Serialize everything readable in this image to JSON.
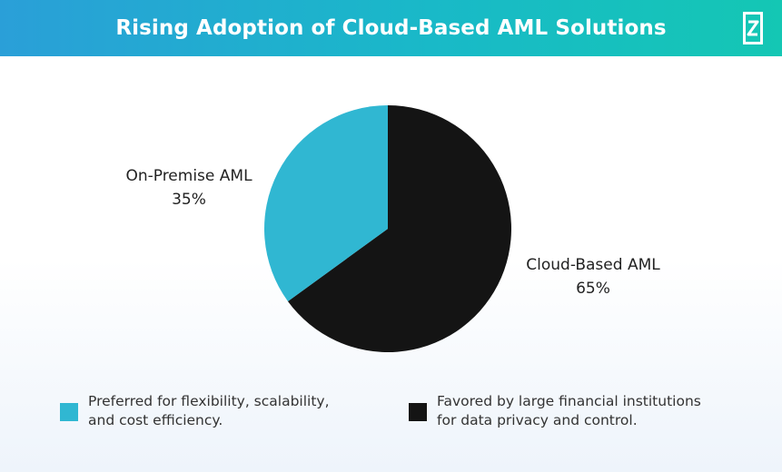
{
  "header": {
    "title": "Rising Adoption of Cloud-Based AML Solutions",
    "colors": {
      "gradient_start": "#2a9fd8",
      "gradient_end": "#14c7b4"
    },
    "logo_icon": "brand-logo-icon"
  },
  "chart_data": {
    "type": "pie",
    "title": "Rising Adoption of Cloud-Based AML Solutions",
    "slices": [
      {
        "label": "On-Premise AML",
        "value": 35,
        "display": "35%",
        "color": "#30b7d2"
      },
      {
        "label": "Cloud-Based AML",
        "value": 65,
        "display": "65%",
        "color": "#141414"
      }
    ],
    "legend": [
      {
        "text": "Preferred for flexibility, scalability,\nand cost efficiency.",
        "color": "#30b7d2"
      },
      {
        "text": "Favored by large financial institutions\nfor data privacy and control.",
        "color": "#141414"
      }
    ],
    "legend_placement": "bottom"
  }
}
